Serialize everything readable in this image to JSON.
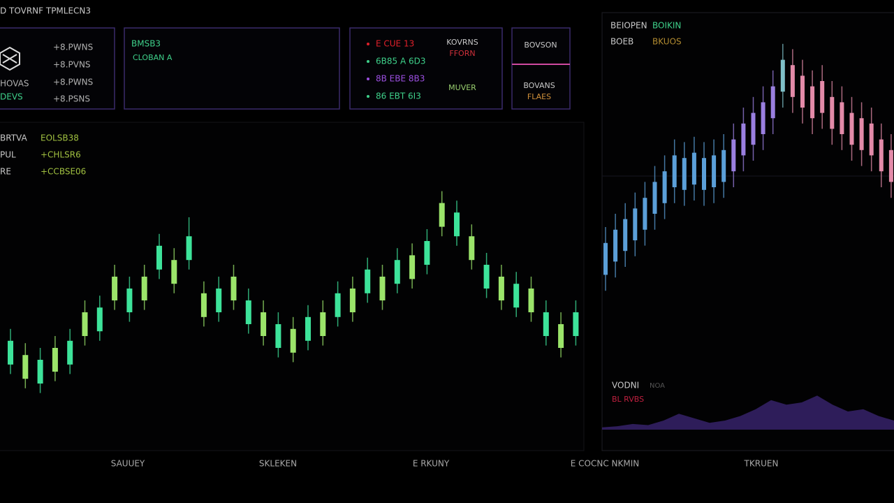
{
  "header": {
    "title": "D TOVRNF TPMLECN3"
  },
  "ticker_panel": {
    "rows": [
      "+8.PWNS",
      "+8.PVNS",
      "+8.PWNS",
      "+8.PSNS"
    ],
    "labels": [
      "HOVAS",
      "DEVS"
    ]
  },
  "summary_panel": {
    "title": "BMSB3",
    "subtitle": "CLOBAN A"
  },
  "quotes_panel": {
    "items": [
      {
        "text": "E CUE 13",
        "color": "#e0202a"
      },
      {
        "text": "6B85 A 6D3",
        "color": "#3ed08a"
      },
      {
        "text": "8B EBE 8B3",
        "color": "#9b4fe0"
      },
      {
        "text": "86 EBT 6I3",
        "color": "#3ed08a"
      }
    ],
    "side": [
      {
        "text": "KOVRNS",
        "color": "#c8c8c8"
      },
      {
        "text": "FFORN",
        "color": "#d0303a"
      },
      {
        "text": "MUVER",
        "color": "#9ad070"
      }
    ]
  },
  "button_panel": {
    "top": "BOVSON",
    "bottom": [
      "BOVANS",
      "FLAES"
    ]
  },
  "main_chart": {
    "type": "candlestick",
    "legend": [
      [
        "BRTVA",
        "EOLSB38"
      ],
      [
        "PUL",
        "+CHLSR6"
      ],
      [
        "RE",
        "+CCBSE06"
      ]
    ],
    "ylim": [
      0,
      100
    ],
    "up_color": "#3de39a",
    "down_color": "#9be46a",
    "candles": [
      [
        23,
        38,
        19,
        33
      ],
      [
        27,
        32,
        13,
        17
      ],
      [
        15,
        30,
        11,
        25
      ],
      [
        30,
        35,
        16,
        20
      ],
      [
        23,
        38,
        19,
        33
      ],
      [
        45,
        50,
        31,
        35
      ],
      [
        37,
        52,
        33,
        47
      ],
      [
        60,
        65,
        46,
        50
      ],
      [
        45,
        60,
        41,
        55
      ],
      [
        60,
        65,
        46,
        50
      ],
      [
        63,
        78,
        59,
        73
      ],
      [
        67,
        72,
        53,
        57
      ],
      [
        67,
        85,
        63,
        77
      ],
      [
        53,
        58,
        39,
        43
      ],
      [
        45,
        60,
        41,
        55
      ],
      [
        60,
        65,
        46,
        50
      ],
      [
        40,
        55,
        36,
        50
      ],
      [
        45,
        50,
        31,
        35
      ],
      [
        30,
        45,
        26,
        40
      ],
      [
        38,
        43,
        24,
        28
      ],
      [
        33,
        48,
        29,
        43
      ],
      [
        45,
        50,
        31,
        35
      ],
      [
        43,
        58,
        39,
        53
      ],
      [
        55,
        60,
        41,
        45
      ],
      [
        53,
        68,
        49,
        63
      ],
      [
        60,
        65,
        46,
        50
      ],
      [
        57,
        72,
        53,
        67
      ],
      [
        69,
        74,
        55,
        59
      ],
      [
        65,
        80,
        61,
        75
      ],
      [
        91,
        96,
        77,
        81
      ],
      [
        77,
        92,
        73,
        87
      ],
      [
        77,
        82,
        63,
        67
      ],
      [
        55,
        70,
        51,
        65
      ],
      [
        60,
        65,
        46,
        50
      ],
      [
        47,
        62,
        43,
        57
      ],
      [
        55,
        60,
        41,
        45
      ],
      [
        35,
        50,
        31,
        45
      ],
      [
        40,
        45,
        26,
        30
      ],
      [
        35,
        50,
        31,
        45
      ]
    ]
  },
  "side_chart": {
    "type": "candlestick",
    "legend": [
      [
        "BEIOPEN",
        "BOIKIN"
      ],
      [
        "BOEB",
        "BKUOS"
      ]
    ],
    "ylim": [
      0,
      100
    ],
    "candles": [
      [
        7,
        25,
        1,
        19
      ],
      [
        24,
        30,
        6,
        12
      ],
      [
        16,
        34,
        10,
        28
      ],
      [
        32,
        38,
        14,
        20
      ],
      [
        24,
        42,
        18,
        36
      ],
      [
        42,
        48,
        24,
        30
      ],
      [
        34,
        52,
        28,
        46
      ],
      [
        52,
        58,
        34,
        40
      ],
      [
        39,
        57,
        33,
        51
      ],
      [
        53,
        59,
        35,
        41
      ],
      [
        39,
        57,
        33,
        51
      ],
      [
        52,
        58,
        34,
        40
      ],
      [
        42,
        60,
        36,
        54
      ],
      [
        58,
        64,
        40,
        46
      ],
      [
        52,
        70,
        46,
        64
      ],
      [
        68,
        74,
        50,
        56
      ],
      [
        60,
        78,
        54,
        72
      ],
      [
        78,
        84,
        60,
        66
      ],
      [
        76,
        94,
        70,
        88
      ],
      [
        86,
        92,
        68,
        74
      ],
      [
        70,
        88,
        64,
        82
      ],
      [
        78,
        84,
        60,
        66
      ],
      [
        68,
        86,
        62,
        80
      ],
      [
        74,
        80,
        56,
        62
      ],
      [
        60,
        78,
        54,
        72
      ],
      [
        68,
        74,
        50,
        56
      ],
      [
        54,
        72,
        48,
        66
      ],
      [
        64,
        70,
        46,
        52
      ],
      [
        46,
        64,
        40,
        58
      ],
      [
        54,
        60,
        36,
        42
      ]
    ],
    "colors": [
      "#5b9fd8",
      "#5b9fd8",
      "#5b9fd8",
      "#5b9fd8",
      "#5b9fd8",
      "#5b9fd8",
      "#5b9fd8",
      "#5b9fd8",
      "#5b9fd8",
      "#5b9fd8",
      "#5b9fd8",
      "#5b9fd8",
      "#5b9fd8",
      "#9a7fe0",
      "#9a7fe0",
      "#9a7fe0",
      "#9a7fe0",
      "#9a7fe0",
      "#7fc0c8",
      "#e38aa8",
      "#e38aa8",
      "#e38aa8",
      "#e38aa8",
      "#e38aa8",
      "#e38aa8",
      "#e38aa8",
      "#e38aa8",
      "#e38aa8",
      "#e38aa8",
      "#e38aa8"
    ],
    "volume": {
      "labels": [
        "VODNI",
        "NOA",
        "BL RVBS"
      ],
      "ylim": [
        0,
        40
      ],
      "color": "#3a2470",
      "values": [
        2,
        3,
        5,
        4,
        8,
        14,
        10,
        6,
        8,
        12,
        18,
        26,
        22,
        24,
        30,
        22,
        16,
        18,
        12,
        8
      ]
    }
  },
  "footer": {
    "labels": [
      "SAUUEY",
      "SKLEKEN",
      "E RKUNY",
      "E COCNC NKMIN",
      "TKRUEN"
    ]
  }
}
